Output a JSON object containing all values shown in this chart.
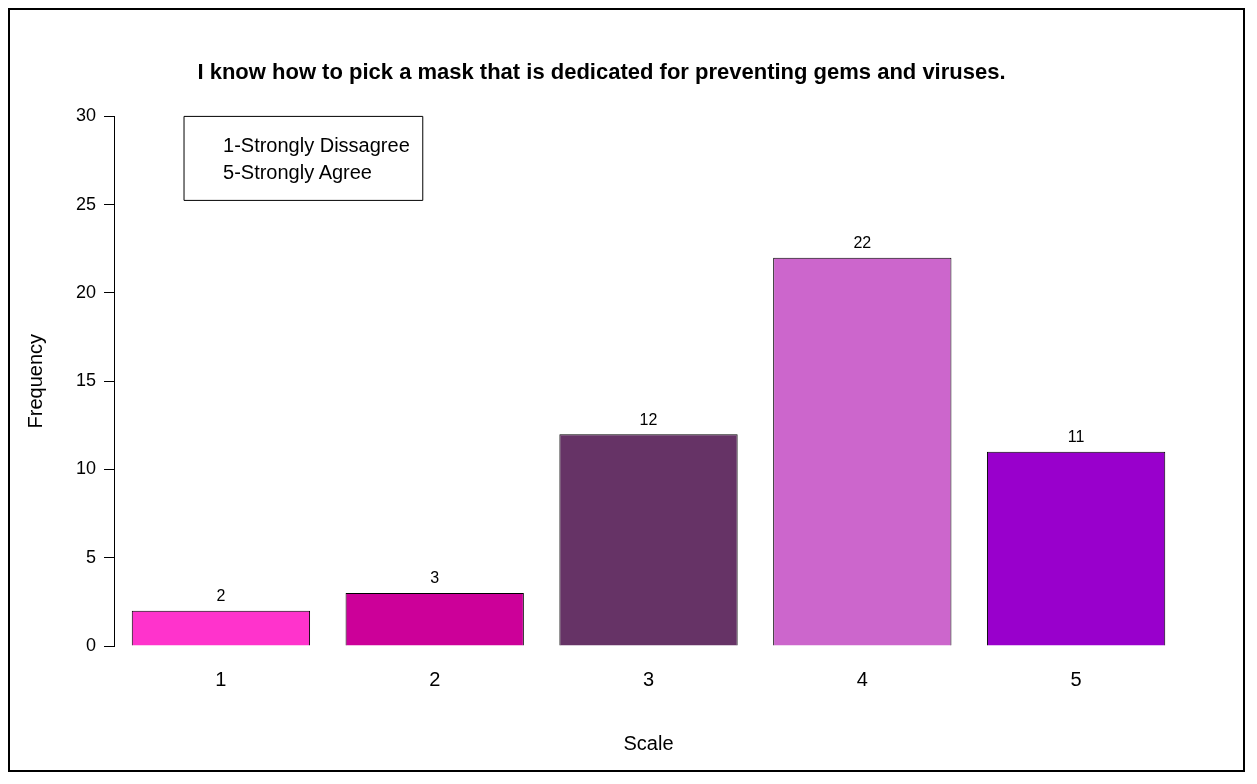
{
  "chart_data": {
    "type": "bar",
    "title": "I know how to pick a mask that is dedicated for preventing gems and viruses.",
    "xlabel": "Scale",
    "ylabel": "Frequency",
    "categories": [
      "1",
      "2",
      "3",
      "4",
      "5"
    ],
    "values": [
      2,
      3,
      12,
      22,
      11
    ],
    "colors": [
      "#ff33cc",
      "#cc0099",
      "#663366",
      "#cc66cc",
      "#9900cc"
    ],
    "ylim": [
      0,
      30
    ],
    "yticks": [
      0,
      5,
      10,
      15,
      20,
      25,
      30
    ],
    "grid": false,
    "data_labels": true,
    "legend": false,
    "annotations": [
      "1-Strongly Dissagree",
      "5-Strongly Agree"
    ]
  }
}
